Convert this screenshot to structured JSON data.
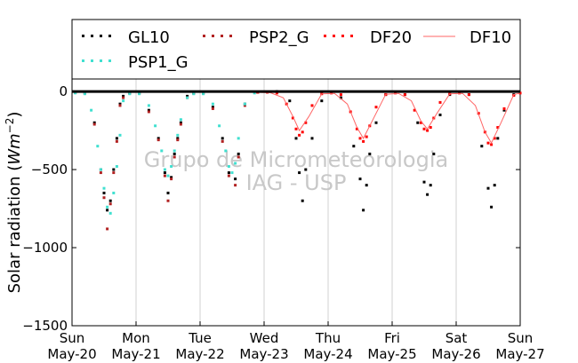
{
  "chart_data": {
    "type": "scatter",
    "ylabel": "Solar radiation (Wm^{-2})",
    "ylabel_parts": {
      "text": "Solar radiation (",
      "unit": "Wm",
      "exp": "−2",
      "close": ")"
    },
    "ylim": [
      -1500,
      80
    ],
    "xlim_days": [
      0,
      7
    ],
    "y_ticks": [
      0,
      -500,
      -1000,
      -1500
    ],
    "y_tick_labels": [
      "0",
      "−500",
      "−1000",
      "−1500"
    ],
    "x_tick_labels": [
      {
        "day": "Sun",
        "date": "May-20"
      },
      {
        "day": "Mon",
        "date": "May-21"
      },
      {
        "day": "Tue",
        "date": "May-22"
      },
      {
        "day": "Wed",
        "date": "May-23"
      },
      {
        "day": "Thu",
        "date": "May-24"
      },
      {
        "day": "Fri",
        "date": "May-25"
      },
      {
        "day": "Sat",
        "date": "May-26"
      },
      {
        "day": "Sun",
        "date": "May-27"
      }
    ],
    "grid": "vertical",
    "legend_placement": "top",
    "watermark": [
      "Grupo de Micrometeorologia",
      "IAG - USP"
    ],
    "series": [
      {
        "name": "GL10",
        "color": "#000000",
        "marker": "dot",
        "x": [
          0.05,
          0.2,
          0.35,
          0.45,
          0.5,
          0.55,
          0.6,
          0.65,
          0.7,
          0.75,
          0.8,
          0.9,
          1.05,
          1.2,
          1.35,
          1.45,
          1.5,
          1.55,
          1.6,
          1.65,
          1.7,
          1.8,
          1.9,
          2.05,
          2.2,
          2.35,
          2.45,
          2.55,
          2.6,
          2.7,
          2.9,
          3.2,
          3.4,
          3.5,
          3.55,
          3.6,
          3.65,
          3.75,
          3.9,
          4.2,
          4.4,
          4.5,
          4.55,
          4.6,
          4.65,
          4.75,
          4.9,
          5.2,
          5.4,
          5.5,
          5.55,
          5.6,
          5.65,
          5.75,
          5.9,
          6.2,
          6.4,
          6.5,
          6.55,
          6.6,
          6.65,
          6.75,
          6.9
        ],
        "y": [
          -5,
          -10,
          -200,
          -500,
          -650,
          -760,
          -700,
          -500,
          -300,
          -80,
          -30,
          -10,
          -10,
          -120,
          -300,
          -520,
          -650,
          -550,
          -400,
          -300,
          -200,
          -30,
          -10,
          -10,
          -100,
          -300,
          -520,
          -560,
          -400,
          -80,
          -5,
          0,
          -60,
          -300,
          -520,
          -700,
          -500,
          -300,
          -60,
          -40,
          -350,
          -560,
          -760,
          -600,
          -400,
          -200,
          -20,
          -20,
          -200,
          -580,
          -660,
          -600,
          -400,
          -150,
          -20,
          -20,
          -350,
          -620,
          -740,
          -600,
          -300,
          -120,
          -20
        ]
      },
      {
        "name": "PSP2_G",
        "color": "#b22222",
        "marker": "dot",
        "x": [
          0.05,
          0.2,
          0.35,
          0.45,
          0.5,
          0.55,
          0.6,
          0.65,
          0.7,
          0.75,
          0.8,
          0.9,
          1.05,
          1.2,
          1.35,
          1.45,
          1.5,
          1.55,
          1.6,
          1.65,
          1.7,
          1.8,
          1.9,
          2.05,
          2.2,
          2.35,
          2.45,
          2.55,
          2.6,
          2.7
        ],
        "y": [
          -8,
          -12,
          -210,
          -520,
          -680,
          -880,
          -720,
          -520,
          -320,
          -90,
          -40,
          -12,
          -12,
          -130,
          -310,
          -540,
          -700,
          -560,
          -420,
          -310,
          -210,
          -40,
          -12,
          -12,
          -110,
          -320,
          -540,
          -600,
          -420,
          -90
        ]
      },
      {
        "name": "DF20",
        "color": "#ff0000",
        "marker": "dot",
        "x": [
          2.9,
          3.05,
          3.2,
          3.35,
          3.45,
          3.5,
          3.55,
          3.6,
          3.65,
          3.75,
          3.9,
          4.05,
          4.2,
          4.35,
          4.45,
          4.5,
          4.55,
          4.6,
          4.65,
          4.75,
          4.9,
          5.05,
          5.2,
          5.35,
          5.45,
          5.5,
          5.55,
          5.6,
          5.65,
          5.75,
          5.9,
          6.05,
          6.2,
          6.35,
          6.45,
          6.5,
          6.55,
          6.6,
          6.65,
          6.75,
          6.9,
          7.0
        ],
        "y": [
          -5,
          -5,
          -10,
          -80,
          -170,
          -240,
          -280,
          -260,
          -200,
          -90,
          -15,
          -10,
          -20,
          -130,
          -240,
          -300,
          -320,
          -290,
          -220,
          -100,
          -20,
          -10,
          -20,
          -120,
          -200,
          -240,
          -250,
          -230,
          -170,
          -70,
          -15,
          -10,
          -20,
          -140,
          -260,
          -330,
          -340,
          -300,
          -230,
          -110,
          -25,
          -10
        ]
      },
      {
        "name": "DF10",
        "color": "#ff6666",
        "marker": "line",
        "x": [
          2.9,
          3.1,
          3.3,
          3.45,
          3.55,
          3.7,
          3.9,
          4.1,
          4.3,
          4.45,
          4.55,
          4.7,
          4.9,
          5.1,
          5.3,
          5.45,
          5.55,
          5.7,
          5.9,
          6.1,
          6.3,
          6.45,
          6.55,
          6.7,
          6.9,
          7.0
        ],
        "y": [
          -5,
          -8,
          -40,
          -160,
          -250,
          -160,
          -15,
          -12,
          -80,
          -230,
          -300,
          -180,
          -18,
          -12,
          -60,
          -190,
          -240,
          -140,
          -15,
          -12,
          -90,
          -260,
          -330,
          -200,
          -20,
          -10
        ]
      },
      {
        "name": "PSP1_G",
        "color": "#40e0d0",
        "marker": "dot",
        "x": [
          0.05,
          0.2,
          0.3,
          0.4,
          0.45,
          0.5,
          0.55,
          0.6,
          0.65,
          0.7,
          0.75,
          0.8,
          0.9,
          1.05,
          1.2,
          1.3,
          1.4,
          1.45,
          1.5,
          1.55,
          1.6,
          1.65,
          1.7,
          1.8,
          1.9,
          2.05,
          2.2,
          2.3,
          2.4,
          2.45,
          2.5,
          2.55,
          2.6,
          2.7,
          2.85
        ],
        "y": [
          -10,
          -15,
          -120,
          -350,
          -500,
          -620,
          -740,
          -780,
          -650,
          -480,
          -280,
          -60,
          -15,
          -15,
          -90,
          -220,
          -380,
          -500,
          -540,
          -480,
          -380,
          -280,
          -180,
          -40,
          -15,
          -15,
          -80,
          -220,
          -380,
          -480,
          -520,
          -460,
          -300,
          -80,
          -10
        ]
      }
    ]
  }
}
